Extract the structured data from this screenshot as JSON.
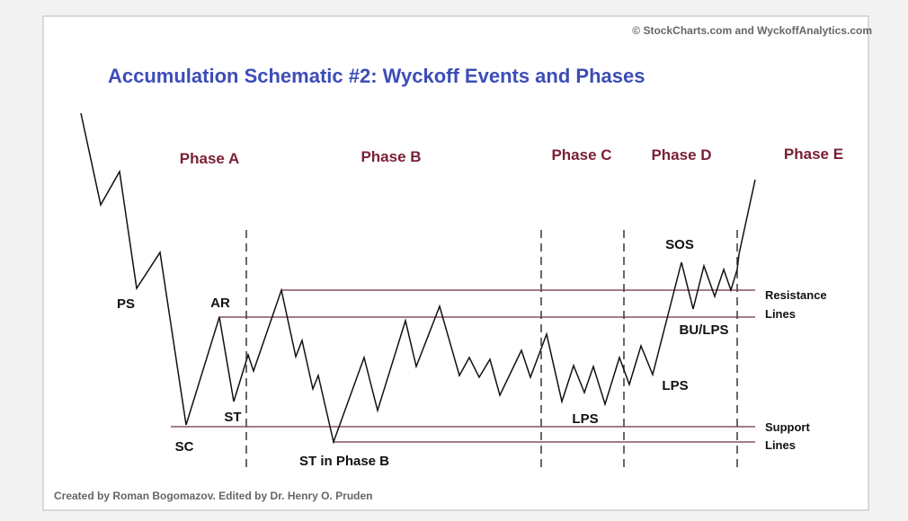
{
  "header": {
    "title": "Accumulation Schematic #2: Wyckoff Events and Phases",
    "copyright": "© StockCharts.com and WyckoffAnalytics.com"
  },
  "footer": {
    "credit": "Created by Roman Bogomazov. Edited by Dr. Henry O. Pruden"
  },
  "phases": [
    "Phase A",
    "Phase B",
    "Phase C",
    "Phase D",
    "Phase E"
  ],
  "events": [
    "PS",
    "AR",
    "ST",
    "SC",
    "ST in Phase B",
    "LPS",
    "LPS",
    "BU/LPS",
    "SOS"
  ],
  "line_labels": {
    "resistance": [
      "Resistance",
      "Lines"
    ],
    "support": [
      "Support",
      "Lines"
    ]
  }
}
